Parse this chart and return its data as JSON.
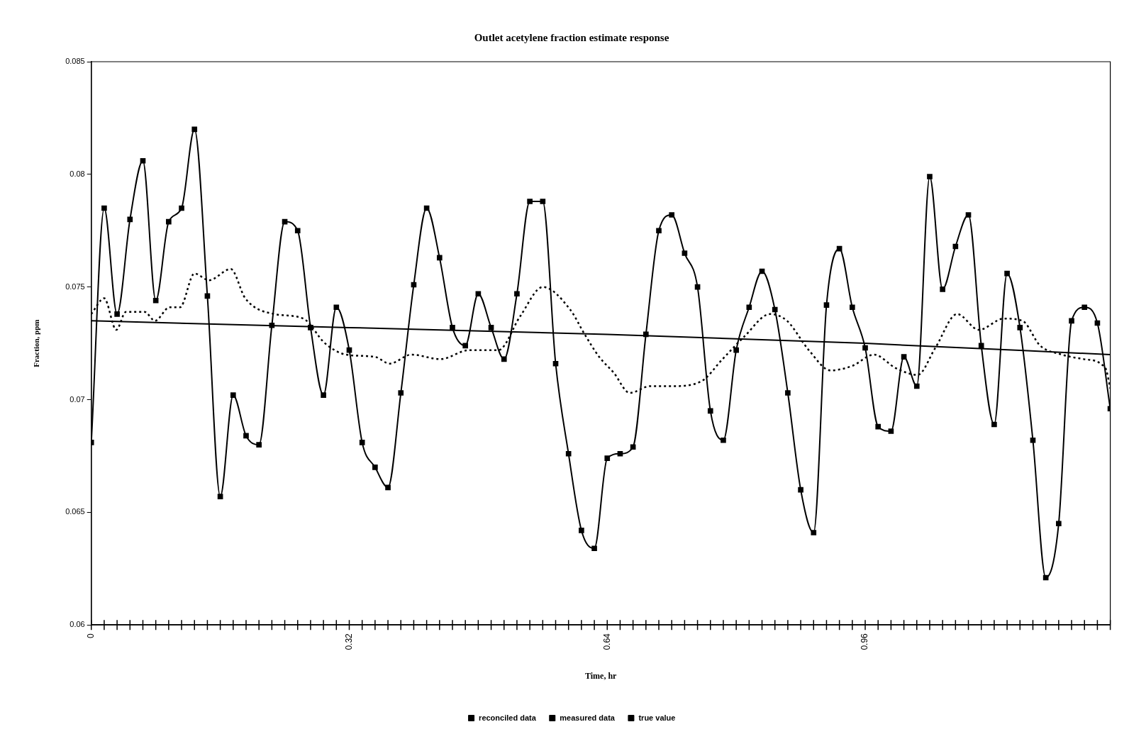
{
  "chart_data": {
    "type": "line",
    "title": "Outlet acetylene fraction estimate response",
    "xlabel": "Time, hr",
    "ylabel": "Fraction, ppm",
    "xlim": [
      0,
      1.264
    ],
    "xticks": [
      0,
      {
        "value": 0.016,
        "label": null
      },
      {
        "value": 0.032,
        "label": null
      },
      {
        "value": 0.048,
        "label": null
      },
      {
        "value": 0.064,
        "label": null
      },
      {
        "value": 0.08,
        "label": null
      },
      {
        "value": 0.096,
        "label": null
      },
      {
        "value": 0.112,
        "label": null
      },
      {
        "value": 0.128,
        "label": null
      },
      {
        "value": 0.144,
        "label": null
      },
      {
        "value": 0.16,
        "label": null
      },
      {
        "value": 0.176,
        "label": null
      },
      {
        "value": 0.192,
        "label": null
      },
      {
        "value": 0.208,
        "label": null
      },
      {
        "value": 0.224,
        "label": null
      },
      {
        "value": 0.24,
        "label": null
      },
      {
        "value": 0.256,
        "label": null
      },
      {
        "value": 0.272,
        "label": null
      },
      {
        "value": 0.288,
        "label": null
      },
      {
        "value": 0.304,
        "label": null
      },
      0.32,
      {
        "value": 0.336,
        "label": null
      },
      {
        "value": 0.352,
        "label": null
      },
      {
        "value": 0.368,
        "label": null
      },
      {
        "value": 0.384,
        "label": null
      },
      {
        "value": 0.4,
        "label": null
      },
      {
        "value": 0.416,
        "label": null
      },
      {
        "value": 0.432,
        "label": null
      },
      {
        "value": 0.448,
        "label": null
      },
      {
        "value": 0.464,
        "label": null
      },
      {
        "value": 0.48,
        "label": null
      },
      {
        "value": 0.496,
        "label": null
      },
      {
        "value": 0.512,
        "label": null
      },
      {
        "value": 0.528,
        "label": null
      },
      {
        "value": 0.544,
        "label": null
      },
      {
        "value": 0.56,
        "label": null
      },
      {
        "value": 0.576,
        "label": null
      },
      {
        "value": 0.592,
        "label": null
      },
      {
        "value": 0.608,
        "label": null
      },
      {
        "value": 0.624,
        "label": null
      },
      0.64,
      {
        "value": 0.656,
        "label": null
      },
      {
        "value": 0.672,
        "label": null
      },
      {
        "value": 0.688,
        "label": null
      },
      {
        "value": 0.704,
        "label": null
      },
      {
        "value": 0.72,
        "label": null
      },
      {
        "value": 0.736,
        "label": null
      },
      {
        "value": 0.752,
        "label": null
      },
      {
        "value": 0.768,
        "label": null
      },
      {
        "value": 0.784,
        "label": null
      },
      {
        "value": 0.8,
        "label": null
      },
      {
        "value": 0.816,
        "label": null
      },
      {
        "value": 0.832,
        "label": null
      },
      {
        "value": 0.848,
        "label": null
      },
      {
        "value": 0.864,
        "label": null
      },
      {
        "value": 0.88,
        "label": null
      },
      {
        "value": 0.896,
        "label": null
      },
      {
        "value": 0.912,
        "label": null
      },
      {
        "value": 0.928,
        "label": null
      },
      {
        "value": 0.944,
        "label": null
      },
      0.96,
      {
        "value": 0.976,
        "label": null
      },
      {
        "value": 0.992,
        "label": null
      },
      {
        "value": 1.008,
        "label": null
      },
      {
        "value": 1.024,
        "label": null
      },
      {
        "value": 1.04,
        "label": null
      },
      {
        "value": 1.056,
        "label": null
      },
      {
        "value": 1.072,
        "label": null
      },
      {
        "value": 1.088,
        "label": null
      },
      {
        "value": 1.104,
        "label": null
      },
      {
        "value": 1.12,
        "label": null
      },
      {
        "value": 1.136,
        "label": null
      },
      {
        "value": 1.152,
        "label": null
      },
      {
        "value": 1.168,
        "label": null
      },
      {
        "value": 1.184,
        "label": null
      },
      {
        "value": 1.2,
        "label": null
      },
      {
        "value": 1.216,
        "label": null
      },
      {
        "value": 1.232,
        "label": null
      },
      {
        "value": 1.248,
        "label": null
      },
      {
        "value": 1.264,
        "label": null
      }
    ],
    "ylim": [
      0.06,
      0.085
    ],
    "yticks": [
      0.06,
      0.065,
      0.07,
      0.075,
      0.08,
      0.085
    ],
    "grid": false,
    "legend": "bottom",
    "x": [
      0,
      0.016,
      0.032,
      0.048,
      0.064,
      0.08,
      0.096,
      0.112,
      0.128,
      0.144,
      0.16,
      0.176,
      0.192,
      0.208,
      0.224,
      0.24,
      0.256,
      0.272,
      0.288,
      0.304,
      0.32,
      0.336,
      0.352,
      0.368,
      0.384,
      0.4,
      0.416,
      0.432,
      0.448,
      0.464,
      0.48,
      0.496,
      0.512,
      0.528,
      0.544,
      0.56,
      0.576,
      0.592,
      0.608,
      0.624,
      0.64,
      0.656,
      0.672,
      0.688,
      0.704,
      0.72,
      0.736,
      0.752,
      0.768,
      0.784,
      0.8,
      0.816,
      0.832,
      0.848,
      0.864,
      0.88,
      0.896,
      0.912,
      0.928,
      0.944,
      0.96,
      0.976,
      0.992,
      1.008,
      1.024,
      1.04,
      1.056,
      1.072,
      1.088,
      1.104,
      1.12,
      1.136,
      1.152,
      1.168,
      1.184,
      1.2,
      1.216,
      1.232,
      1.248,
      1.264
    ],
    "series": [
      {
        "name": "reconciled data",
        "color": "#000000",
        "line_style": "dotted",
        "marker": "none",
        "x": [
          0,
          0.016,
          0.031,
          0.043,
          0.066,
          0.079,
          0.097,
          0.11,
          0.128,
          0.146,
          0.173,
          0.191,
          0.227,
          0.263,
          0.29,
          0.316,
          0.352,
          0.37,
          0.397,
          0.433,
          0.469,
          0.505,
          0.532,
          0.56,
          0.594,
          0.612,
          0.63,
          0.648,
          0.668,
          0.693,
          0.72,
          0.756,
          0.783,
          0.81,
          0.842,
          0.863,
          0.89,
          0.917,
          0.944,
          0.971,
          0.998,
          1.025,
          1.047,
          1.074,
          1.101,
          1.132,
          1.155,
          1.177,
          1.204,
          1.231,
          1.258,
          1.264
        ],
        "values": [
          0.0738,
          0.0745,
          0.0731,
          0.0739,
          0.0739,
          0.0735,
          0.0741,
          0.0741,
          0.0756,
          0.0753,
          0.0758,
          0.0745,
          0.0738,
          0.0736,
          0.0725,
          0.072,
          0.0719,
          0.0716,
          0.072,
          0.0718,
          0.0722,
          0.0722,
          0.0737,
          0.075,
          0.074,
          0.0729,
          0.0719,
          0.0712,
          0.0703,
          0.0706,
          0.0706,
          0.0708,
          0.0718,
          0.0728,
          0.0738,
          0.0735,
          0.0722,
          0.0713,
          0.0715,
          0.072,
          0.0714,
          0.0711,
          0.0723,
          0.0738,
          0.0731,
          0.0736,
          0.0735,
          0.0724,
          0.072,
          0.0718,
          0.0714,
          0.0705
        ]
      },
      {
        "name": "measured data",
        "color": "#000000",
        "line_style": "solid",
        "marker": "square",
        "values": [
          0.0681,
          0.0785,
          0.0738,
          0.078,
          0.0806,
          0.0744,
          0.0779,
          0.0785,
          0.082,
          0.0746,
          0.0657,
          0.0702,
          0.0684,
          0.068,
          0.0733,
          0.0779,
          0.0775,
          0.0732,
          0.0702,
          0.0741,
          0.0722,
          0.0681,
          0.067,
          0.0661,
          0.0703,
          0.0751,
          0.0785,
          0.0763,
          0.0732,
          0.0724,
          0.0747,
          0.0732,
          0.0718,
          0.0747,
          0.0788,
          0.0788,
          0.0716,
          0.0676,
          0.0642,
          0.0634,
          0.0674,
          0.0676,
          0.0679,
          0.0729,
          0.0775,
          0.0782,
          0.0765,
          0.075,
          0.0695,
          0.0682,
          0.0722,
          0.0741,
          0.0757,
          0.074,
          0.0703,
          0.066,
          0.0641,
          0.0742,
          0.0767,
          0.0741,
          0.0723,
          0.0688,
          0.0686,
          0.0719,
          0.0706,
          0.0799,
          0.0749,
          0.0768,
          0.0782,
          0.0724,
          0.0689,
          0.0756,
          0.0732,
          0.0682,
          0.0621,
          0.0645,
          0.0735,
          0.0741,
          0.0734,
          0.0696
        ]
      },
      {
        "name": "true value",
        "color": "#000000",
        "line_style": "solid",
        "marker": "none",
        "x": [
          0,
          0.32,
          0.64,
          0.96,
          1.264
        ],
        "values": [
          0.0735,
          0.0732,
          0.0729,
          0.0725,
          0.072
        ]
      }
    ]
  }
}
